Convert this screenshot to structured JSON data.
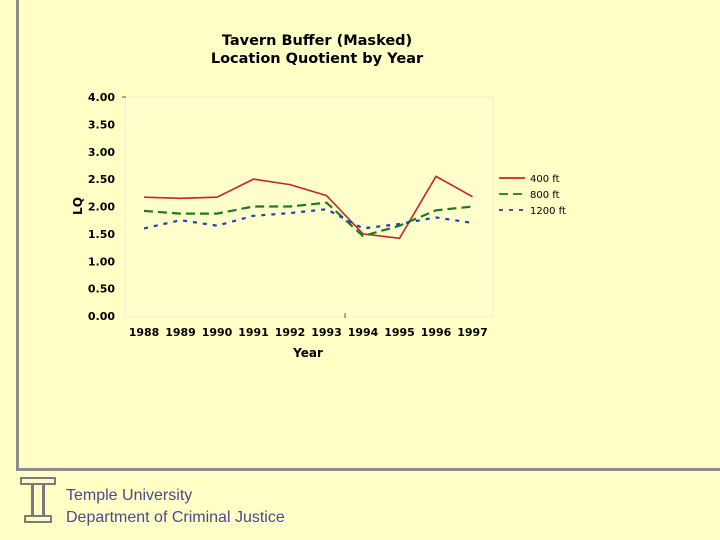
{
  "footer": {
    "line1": "Temple University",
    "line2": "Department of Criminal Justice"
  },
  "logo": {
    "icon": "temple-t-icon",
    "color": "#7a7a7a"
  },
  "colors": {
    "background": "#ffffc6",
    "plot_area": "#ffffcc",
    "rule": "#8d8d8d"
  },
  "chart_data": {
    "type": "line",
    "title": "Tavern Buffer (Masked)",
    "subtitle": "Location Quotient by Year",
    "xlabel": "Year",
    "ylabel": "LQ",
    "categories": [
      "1988",
      "1989",
      "1990",
      "1991",
      "1992",
      "1993",
      "1994",
      "1995",
      "1996",
      "1997"
    ],
    "y_ticks": [
      "4.00",
      "3.50",
      "3.00",
      "2.50",
      "2.00",
      "1.50",
      "1.00",
      "0.50",
      "0.00"
    ],
    "ylim": [
      0,
      4
    ],
    "grid": false,
    "legend_position": "right",
    "series": [
      {
        "name": "400 ft",
        "color": "#cc2222",
        "dash": "solid",
        "values": [
          2.17,
          2.15,
          2.17,
          2.5,
          2.4,
          2.2,
          1.5,
          1.42,
          2.55,
          2.18
        ]
      },
      {
        "name": "800 ft",
        "color": "#1e7a1e",
        "dash": "dashed",
        "values": [
          1.92,
          1.87,
          1.87,
          2.0,
          2.0,
          2.07,
          1.46,
          1.65,
          1.93,
          2.0
        ]
      },
      {
        "name": "1200 ft",
        "color": "#1f3fb5",
        "dash": "dotted",
        "values": [
          1.6,
          1.75,
          1.65,
          1.83,
          1.88,
          1.95,
          1.6,
          1.68,
          1.8,
          1.7
        ]
      }
    ]
  }
}
